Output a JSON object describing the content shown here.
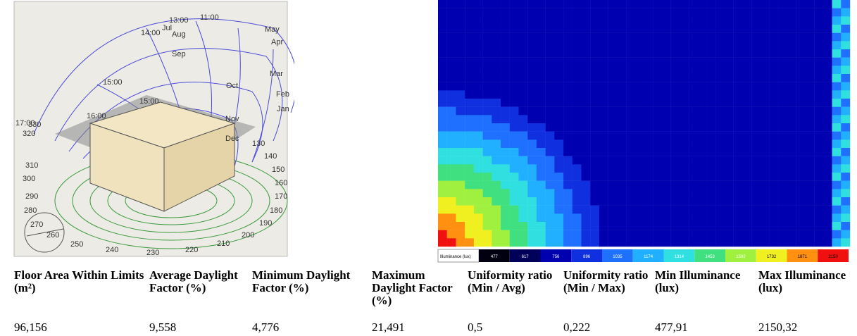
{
  "sun_path": {
    "month_labels": [
      "Jan",
      "Feb",
      "Mar",
      "Apr",
      "May",
      "Jul",
      "Aug",
      "Sep",
      "Oct",
      "Nov",
      "Dec"
    ],
    "hour_labels": [
      "13:00",
      "11:00",
      "14:00",
      "15:00",
      "15:00",
      "16:00",
      "17:00"
    ],
    "azimuth_labels": [
      "130",
      "140",
      "150",
      "160",
      "170",
      "180",
      "190",
      "200",
      "210",
      "220",
      "230",
      "240",
      "250",
      "260",
      "270",
      "280",
      "290",
      "300",
      "310",
      "320",
      "330"
    ]
  },
  "heatmap": {
    "legend_title": "Illuminance (lux)",
    "legend_values": [
      "477",
      "617",
      "756",
      "896",
      "1035",
      "1174",
      "1314",
      "1453",
      "1592",
      "1732",
      "1871",
      "2150"
    ]
  },
  "table": {
    "headers": [
      "Floor Area Within Limits (m²)",
      "Average Daylight Factor (%)",
      "Minimum Daylight Factor (%)",
      "Maximum Daylight Factor (%)",
      "Uniformity ratio (Min / Avg)",
      "Uniformity ratio (Min / Max)",
      "Min Illuminance (lux)",
      "Max Illuminance (lux)"
    ],
    "rows": [
      [
        "96,156",
        "9,558",
        "4,776",
        "21,491",
        "0,5",
        "0,222",
        "477,91",
        "2150,32"
      ]
    ]
  }
}
